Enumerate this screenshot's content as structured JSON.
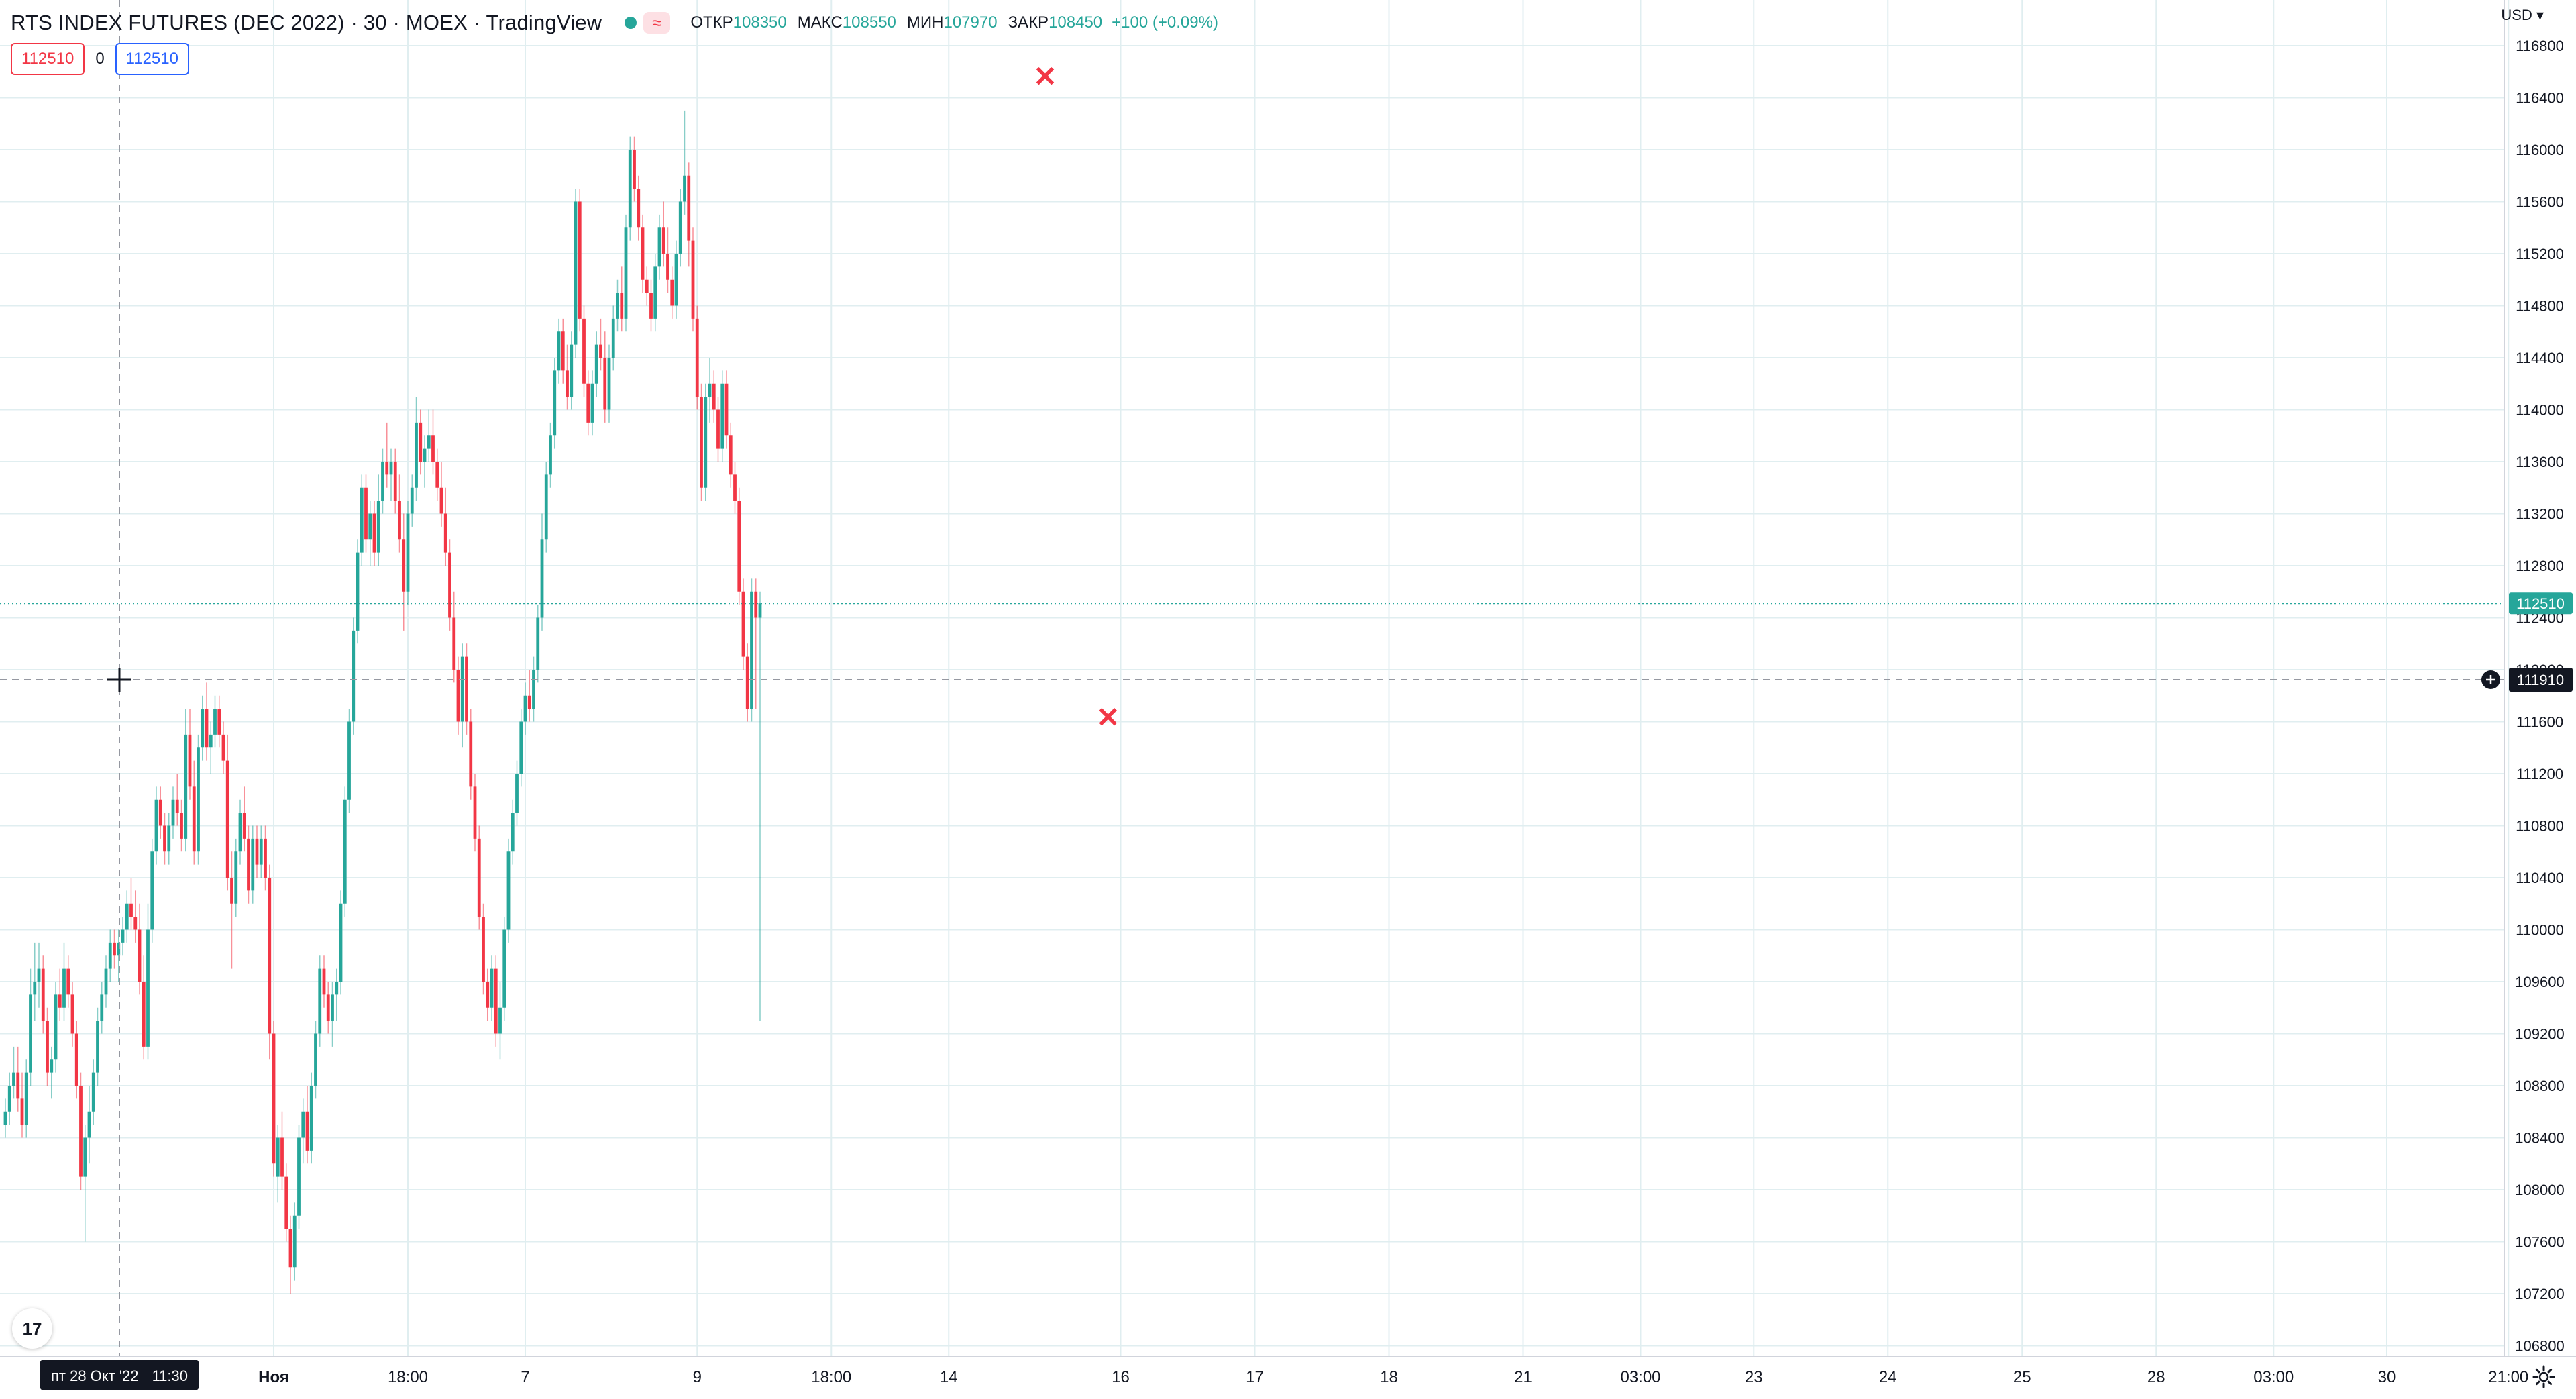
{
  "header": {
    "symbol": "RTS INDEX FUTURES (DEC 2022)",
    "interval": "30",
    "exchange": "MOEX",
    "provider": "TradingView",
    "title_full": "RTS INDEX FUTURES (DEC 2022) · 30 · MOEX · TradingView",
    "approx_badge": "≈",
    "ohlc": {
      "open_label": "ОТКР",
      "open": "108350",
      "high_label": "МАКС",
      "high": "108550",
      "low_label": "МИН",
      "low": "107970",
      "close_label": "ЗАКР",
      "close": "108450",
      "change": "+100 (+0.09%)"
    }
  },
  "order_panel": {
    "sell_price": "112510",
    "spread": "0",
    "buy_price": "112510"
  },
  "price_axis": {
    "currency_label": "USD ▾"
  },
  "crosshair": {
    "price_label": "111910",
    "time_label_date": "пт 28 Окт '22",
    "time_label_time": "11:30"
  },
  "last_price": {
    "label": "112510",
    "value": 112510
  },
  "marks": [
    {
      "label": "✕",
      "price": 116550,
      "bar_index": 248
    },
    {
      "label": "✕",
      "price": 111620,
      "bar_index": 263
    }
  ],
  "logo": {
    "text": "17"
  },
  "colors": {
    "up": "#26a69a",
    "down": "#f23645",
    "grid": "#e0eef0",
    "axis_text": "#131722",
    "last_price": "#26a69a",
    "crosshair": "#9598a1",
    "order_sell": "#f23645",
    "order_buy": "#2962ff"
  },
  "chart_data": {
    "type": "candlestick",
    "ylim": [
      106600,
      117000
    ],
    "y_ticks": [
      106800,
      107200,
      107600,
      108000,
      108400,
      108800,
      109200,
      109600,
      110000,
      110400,
      110800,
      111200,
      111600,
      112000,
      112400,
      112800,
      113200,
      113600,
      114000,
      114400,
      114800,
      115200,
      115600,
      116000,
      116400,
      116800
    ],
    "x_ticks": [
      {
        "label": "Ноя",
        "bar": 64,
        "bold": true
      },
      {
        "label": "18:00",
        "bar": 96
      },
      {
        "label": "7",
        "bar": 124
      },
      {
        "label": "9",
        "bar": 165
      },
      {
        "label": "18:00",
        "bar": 197
      },
      {
        "label": "14",
        "bar": 225
      },
      {
        "label": "16",
        "bar": 266
      },
      {
        "label": "17",
        "bar": 298
      },
      {
        "label": "18",
        "bar": 330
      },
      {
        "label": "21",
        "bar": 362
      },
      {
        "label": "03:00",
        "bar": 390
      },
      {
        "label": "23",
        "bar": 417
      },
      {
        "label": "24",
        "bar": 449
      },
      {
        "label": "25",
        "bar": 481
      },
      {
        "label": "28",
        "bar": 513
      },
      {
        "label": "03:00",
        "bar": 541
      },
      {
        "label": "30",
        "bar": 568
      },
      {
        "label": "21:00",
        "bar": 597
      }
    ],
    "x_tick_label_list": [
      "Ноя",
      "18:00",
      "7",
      "9",
      "18:00",
      "14",
      "16",
      "17",
      "18",
      "21",
      "03:00",
      "23",
      "24",
      "25",
      "28",
      "03:00",
      "30",
      "21:00"
    ],
    "candles": [
      [
        108500,
        108700,
        108400,
        108600
      ],
      [
        108600,
        108900,
        108500,
        108800
      ],
      [
        108800,
        109100,
        108700,
        108900
      ],
      [
        108900,
        109100,
        108600,
        108700
      ],
      [
        108700,
        108900,
        108400,
        108500
      ],
      [
        108500,
        109000,
        108400,
        108900
      ],
      [
        108900,
        109700,
        108800,
        109500
      ],
      [
        109500,
        109900,
        109300,
        109600
      ],
      [
        109600,
        109900,
        109400,
        109700
      ],
      [
        109700,
        109800,
        109200,
        109300
      ],
      [
        109300,
        109400,
        108800,
        108900
      ],
      [
        108900,
        109100,
        108700,
        109000
      ],
      [
        109000,
        109600,
        108900,
        109500
      ],
      [
        109500,
        109700,
        109300,
        109400
      ],
      [
        109400,
        109900,
        109300,
        109700
      ],
      [
        109700,
        109800,
        109400,
        109500
      ],
      [
        109500,
        109600,
        109100,
        109200
      ],
      [
        109200,
        109300,
        108700,
        108800
      ],
      [
        108800,
        108900,
        108000,
        108100
      ],
      [
        108100,
        108500,
        107600,
        108400
      ],
      [
        108400,
        108800,
        108200,
        108600
      ],
      [
        108600,
        109000,
        108500,
        108900
      ],
      [
        108900,
        109400,
        108800,
        109300
      ],
      [
        109300,
        109600,
        109200,
        109500
      ],
      [
        109500,
        109800,
        109400,
        109700
      ],
      [
        109700,
        110000,
        109600,
        109900
      ],
      [
        109900,
        110000,
        109700,
        109800
      ],
      [
        109800,
        110000,
        109600,
        109900
      ],
      [
        109900,
        110100,
        109800,
        110000
      ],
      [
        110000,
        110300,
        109900,
        110200
      ],
      [
        110200,
        110400,
        110000,
        110100
      ],
      [
        110100,
        110300,
        109900,
        110000
      ],
      [
        110000,
        110200,
        109500,
        109600
      ],
      [
        109600,
        109800,
        109000,
        109100
      ],
      [
        109100,
        110200,
        109000,
        110000
      ],
      [
        110000,
        110700,
        109900,
        110600
      ],
      [
        110600,
        111100,
        110500,
        111000
      ],
      [
        111000,
        111100,
        110700,
        110800
      ],
      [
        110800,
        110900,
        110500,
        110600
      ],
      [
        110600,
        110900,
        110500,
        110800
      ],
      [
        110800,
        111100,
        110700,
        111000
      ],
      [
        111000,
        111200,
        110800,
        110900
      ],
      [
        110900,
        111000,
        110600,
        110700
      ],
      [
        110700,
        111700,
        110600,
        111500
      ],
      [
        111500,
        111700,
        111000,
        111100
      ],
      [
        111100,
        111300,
        110500,
        110600
      ],
      [
        110600,
        111500,
        110500,
        111400
      ],
      [
        111400,
        111800,
        111300,
        111700
      ],
      [
        111700,
        111900,
        111300,
        111400
      ],
      [
        111400,
        111600,
        111200,
        111500
      ],
      [
        111500,
        111800,
        111400,
        111700
      ],
      [
        111700,
        111800,
        111400,
        111500
      ],
      [
        111500,
        111600,
        111200,
        111300
      ],
      [
        111300,
        111500,
        110300,
        110400
      ],
      [
        110400,
        110600,
        109700,
        110200
      ],
      [
        110200,
        110700,
        110100,
        110600
      ],
      [
        110600,
        111000,
        110500,
        110900
      ],
      [
        110900,
        111100,
        110600,
        110700
      ],
      [
        110700,
        110800,
        110200,
        110300
      ],
      [
        110300,
        110800,
        110200,
        110700
      ],
      [
        110700,
        110800,
        110400,
        110500
      ],
      [
        110500,
        110800,
        110400,
        110700
      ],
      [
        110700,
        110800,
        110300,
        110400
      ],
      [
        110400,
        110500,
        109000,
        109200
      ],
      [
        109200,
        109300,
        108100,
        108200
      ],
      [
        108100,
        108500,
        107900,
        108400
      ],
      [
        108400,
        108600,
        108000,
        108100
      ],
      [
        108100,
        108200,
        107600,
        107700
      ],
      [
        107700,
        107800,
        107200,
        107400
      ],
      [
        107400,
        107900,
        107300,
        107800
      ],
      [
        107800,
        108500,
        107700,
        108400
      ],
      [
        108400,
        108700,
        108200,
        108600
      ],
      [
        108600,
        108800,
        108200,
        108300
      ],
      [
        108300,
        108900,
        108200,
        108800
      ],
      [
        108800,
        109300,
        108700,
        109200
      ],
      [
        109200,
        109800,
        109100,
        109700
      ],
      [
        109700,
        109800,
        109400,
        109500
      ],
      [
        109500,
        109600,
        109200,
        109300
      ],
      [
        109300,
        109600,
        109100,
        109500
      ],
      [
        109500,
        109700,
        109300,
        109600
      ],
      [
        109600,
        110300,
        109500,
        110200
      ],
      [
        110200,
        111100,
        110100,
        111000
      ],
      [
        111000,
        111700,
        110900,
        111600
      ],
      [
        111600,
        112400,
        111500,
        112300
      ],
      [
        112300,
        113000,
        112200,
        112900
      ],
      [
        112900,
        113500,
        112800,
        113400
      ],
      [
        113400,
        113500,
        112900,
        113000
      ],
      [
        113000,
        113300,
        112800,
        113200
      ],
      [
        113200,
        113300,
        112800,
        112900
      ],
      [
        112900,
        113500,
        112800,
        113300
      ],
      [
        113300,
        113700,
        113200,
        113600
      ],
      [
        113600,
        113900,
        113400,
        113500
      ],
      [
        113500,
        113700,
        113300,
        113600
      ],
      [
        113600,
        113700,
        113200,
        113300
      ],
      [
        113300,
        113500,
        112900,
        113000
      ],
      [
        113000,
        113200,
        112300,
        112600
      ],
      [
        112600,
        113300,
        112500,
        113200
      ],
      [
        113200,
        113500,
        113100,
        113400
      ],
      [
        113400,
        114100,
        113300,
        113900
      ],
      [
        113900,
        114000,
        113500,
        113600
      ],
      [
        113600,
        113800,
        113400,
        113700
      ],
      [
        113700,
        114000,
        113600,
        113800
      ],
      [
        113800,
        114000,
        113500,
        113600
      ],
      [
        113600,
        113700,
        113300,
        113400
      ],
      [
        113400,
        113600,
        113100,
        113200
      ],
      [
        113200,
        113400,
        112800,
        112900
      ],
      [
        112900,
        113000,
        112300,
        112400
      ],
      [
        112400,
        112600,
        111900,
        112000
      ],
      [
        112000,
        112100,
        111500,
        111600
      ],
      [
        111600,
        112200,
        111400,
        112100
      ],
      [
        112100,
        112200,
        111500,
        111600
      ],
      [
        111600,
        111700,
        111000,
        111100
      ],
      [
        111100,
        111200,
        110600,
        110700
      ],
      [
        110700,
        110800,
        110000,
        110100
      ],
      [
        110100,
        110200,
        109500,
        109600
      ],
      [
        109600,
        109700,
        109300,
        109400
      ],
      [
        109400,
        109800,
        109300,
        109700
      ],
      [
        109700,
        109800,
        109100,
        109200
      ],
      [
        109200,
        109600,
        109000,
        109400
      ],
      [
        109400,
        110100,
        109300,
        110000
      ],
      [
        110000,
        110700,
        109900,
        110600
      ],
      [
        110600,
        111000,
        110500,
        110900
      ],
      [
        110900,
        111300,
        110800,
        111200
      ],
      [
        111200,
        111700,
        111100,
        111600
      ],
      [
        111600,
        111900,
        111500,
        111800
      ],
      [
        111800,
        112000,
        111600,
        111700
      ],
      [
        111700,
        112100,
        111600,
        112000
      ],
      [
        112000,
        112500,
        111900,
        112400
      ],
      [
        112400,
        113200,
        112300,
        113000
      ],
      [
        113000,
        113600,
        112900,
        113500
      ],
      [
        113500,
        113900,
        113400,
        113800
      ],
      [
        113800,
        114400,
        113700,
        114300
      ],
      [
        114300,
        114700,
        114200,
        114600
      ],
      [
        114600,
        114700,
        114200,
        114300
      ],
      [
        114300,
        114500,
        114000,
        114100
      ],
      [
        114100,
        114600,
        114000,
        114500
      ],
      [
        114500,
        115700,
        114400,
        115600
      ],
      [
        115600,
        115700,
        114600,
        114700
      ],
      [
        114700,
        114800,
        114100,
        114200
      ],
      [
        114200,
        114300,
        113800,
        113900
      ],
      [
        113900,
        114300,
        113800,
        114200
      ],
      [
        114200,
        114600,
        114100,
        114500
      ],
      [
        114500,
        114700,
        114300,
        114400
      ],
      [
        114400,
        114600,
        113900,
        114000
      ],
      [
        114000,
        114500,
        113900,
        114400
      ],
      [
        114400,
        114800,
        114300,
        114700
      ],
      [
        114700,
        115000,
        114600,
        114900
      ],
      [
        114900,
        115100,
        114600,
        114700
      ],
      [
        114700,
        115500,
        114600,
        115400
      ],
      [
        115400,
        116100,
        115300,
        116000
      ],
      [
        116000,
        116100,
        115600,
        115700
      ],
      [
        115700,
        115800,
        115300,
        115400
      ],
      [
        115400,
        115500,
        114900,
        115000
      ],
      [
        115000,
        115100,
        114800,
        114900
      ],
      [
        114900,
        115000,
        114600,
        114700
      ],
      [
        114700,
        115200,
        114600,
        115100
      ],
      [
        115100,
        115500,
        115000,
        115400
      ],
      [
        115400,
        115600,
        115100,
        115200
      ],
      [
        115200,
        115400,
        114900,
        115000
      ],
      [
        115000,
        115100,
        114700,
        114800
      ],
      [
        114800,
        115300,
        114700,
        115200
      ],
      [
        115200,
        115700,
        115100,
        115600
      ],
      [
        115600,
        116300,
        115500,
        115800
      ],
      [
        115800,
        115900,
        115100,
        115300
      ],
      [
        115300,
        115400,
        114600,
        114700
      ],
      [
        114700,
        114800,
        114000,
        114100
      ],
      [
        114100,
        114200,
        113300,
        113400
      ],
      [
        113400,
        114200,
        113300,
        114100
      ],
      [
        114100,
        114400,
        113900,
        114200
      ],
      [
        114200,
        114300,
        113900,
        114000
      ],
      [
        114000,
        114100,
        113600,
        113700
      ],
      [
        113700,
        114300,
        113600,
        114200
      ],
      [
        114200,
        114300,
        113700,
        113800
      ],
      [
        113800,
        113900,
        113400,
        113500
      ],
      [
        113500,
        113600,
        113200,
        113300
      ],
      [
        113300,
        113400,
        112500,
        112600
      ],
      [
        112600,
        112700,
        112000,
        112100
      ],
      [
        112100,
        112200,
        111600,
        111700
      ],
      [
        111700,
        112700,
        111600,
        112600
      ],
      [
        112600,
        112700,
        111700,
        112400
      ],
      [
        112400,
        112600,
        109300,
        112510
      ]
    ]
  }
}
